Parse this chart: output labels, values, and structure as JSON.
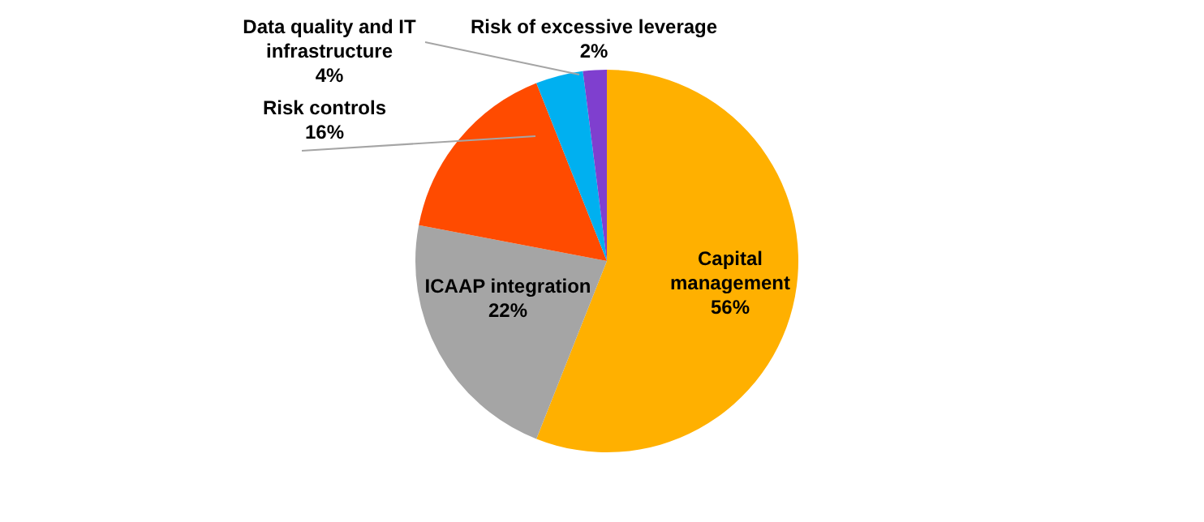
{
  "chart_data": {
    "type": "pie",
    "categories": [
      "Capital management",
      "ICAAP integration",
      "Risk controls",
      "Data quality and IT infrastructure",
      "Risk of excessive leverage"
    ],
    "values": [
      56,
      22,
      16,
      4,
      2
    ],
    "colors": [
      "#ffb000",
      "#a5a5a5",
      "#ff4b00",
      "#00b0f0",
      "#7f3fcf"
    ],
    "value_labels": [
      "56%",
      "22%",
      "16%",
      "4%",
      "2%"
    ],
    "legend": false
  }
}
